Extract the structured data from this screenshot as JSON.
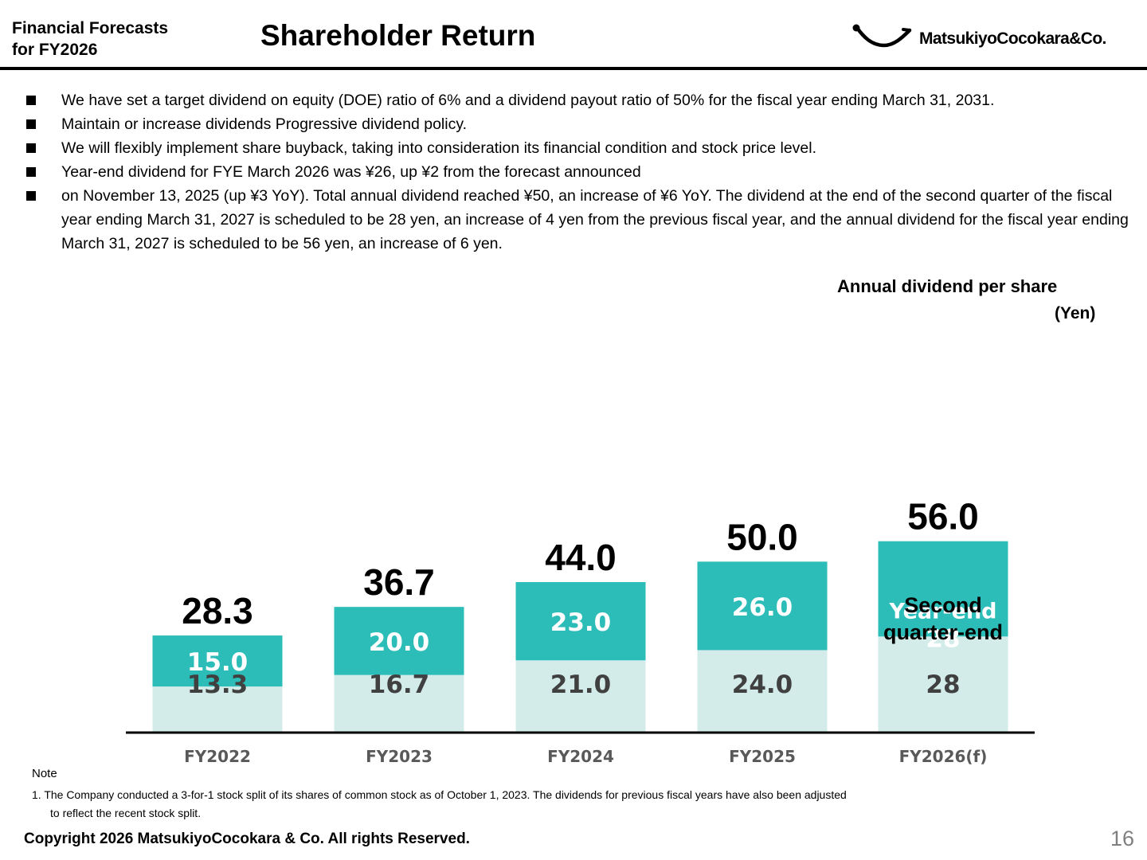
{
  "header": {
    "section_line1": "Financial Forecasts",
    "section_line2": "for FY2026",
    "title": "Shareholder Return",
    "logo_text": "MatsukiyoCocokara&Co."
  },
  "bullets": [
    "We have set a target dividend on equity (DOE) ratio of 6% and a dividend payout ratio of 50% for the fiscal year ending March 31, 2031.",
    "Maintain or increase dividends Progressive dividend policy.",
    "We will flexibly implement share buyback, taking into consideration its financial condition and stock price level.",
    "Year-end dividend for FYE March 2026 was ¥26, up ¥2 from the forecast announced",
    "on November 13, 2025 (up ¥3 YoY). Total annual dividend reached ¥50, an increase of ¥6 YoY. The dividend at the end of the second quarter of the fiscal year ending March 31, 2027 is scheduled to be 28 yen, an increase of 4 yen from the previous fiscal year, and the annual dividend for the fiscal year ending March 31, 2027 is scheduled to be 56 yen, an increase of 6 yen."
  ],
  "chart_data": {
    "type": "bar",
    "stacked": true,
    "title": "Annual dividend per share",
    "unit": "(Yen)",
    "categories": [
      "FY2022",
      "FY2023",
      "FY2024",
      "FY2025",
      "FY2026(f)"
    ],
    "series": [
      {
        "key": "second_quarter",
        "value_labels": [
          "13.3",
          "16.7",
          "21.0",
          "24.0",
          "28"
        ],
        "values": [
          13.3,
          16.7,
          21.0,
          24.0,
          28
        ],
        "color": "#d3ecea",
        "text_color": "#404040"
      },
      {
        "key": "year_end",
        "value_labels": [
          "15.0",
          "20.0",
          "23.0",
          "26.0",
          "28"
        ],
        "values": [
          15.0,
          20.0,
          23.0,
          26.0,
          28
        ],
        "color": "#2dbdb8",
        "text_color": "#ffffff"
      }
    ],
    "totals": [
      28.3,
      36.7,
      44.0,
      50.0,
      56.0
    ],
    "total_labels": [
      "28.3",
      "36.7",
      "44.0",
      "50.0",
      "56.0"
    ],
    "annotations": {
      "year_end_label": "Year-end",
      "second_quarter_line1": "Second",
      "second_quarter_line2": "quarter-end"
    },
    "ylim": [
      0,
      56
    ],
    "grid": false,
    "axis_color": "#000000",
    "category_label_color": "#595959"
  },
  "notes": {
    "title": "Note",
    "line1": "1. The Company conducted a 3-for-1 stock split of its shares of common stock as of October 1, 2023. The dividends for previous fiscal years have also been adjusted",
    "line2": "to reflect the recent stock split."
  },
  "footer": {
    "copyright": "Copyright 2026 MatsukiyoCocokara & Co. All rights Reserved.",
    "page_number": "16"
  }
}
